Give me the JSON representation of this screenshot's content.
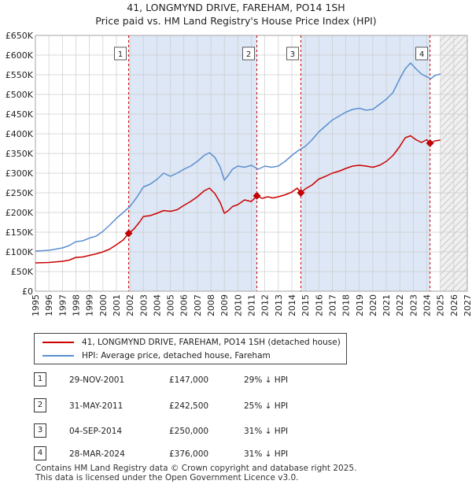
{
  "title_line1": "41, LONGMYND DRIVE, FAREHAM, PO14 1SH",
  "title_line2": "Price paid vs. HM Land Registry's House Price Index (HPI)",
  "colors": {
    "price": "#cc0000",
    "hpi": "#5b8fd0",
    "band": "#dde7f5",
    "grid": "#cccccc",
    "marker": "#cc0000"
  },
  "chart_data": {
    "type": "line",
    "title": "Price paid vs. HM Land Registry's House Price Index (HPI)",
    "xlim": [
      1995,
      2027
    ],
    "ylim": [
      0,
      650000
    ],
    "x_ticks": [
      "1995",
      "1996",
      "1997",
      "1998",
      "1999",
      "2000",
      "2001",
      "2002",
      "2003",
      "2004",
      "2005",
      "2006",
      "2007",
      "2008",
      "2009",
      "2010",
      "2011",
      "2012",
      "2013",
      "2014",
      "2015",
      "2016",
      "2017",
      "2018",
      "2019",
      "2020",
      "2021",
      "2022",
      "2023",
      "2024",
      "2025",
      "2026",
      "2027"
    ],
    "y_ticks": [
      {
        "value": 0,
        "label": "£0"
      },
      {
        "value": 50000,
        "label": "£50K"
      },
      {
        "value": 100000,
        "label": "£100K"
      },
      {
        "value": 150000,
        "label": "£150K"
      },
      {
        "value": 200000,
        "label": "£200K"
      },
      {
        "value": 250000,
        "label": "£250K"
      },
      {
        "value": 300000,
        "label": "£300K"
      },
      {
        "value": 350000,
        "label": "£350K"
      },
      {
        "value": 400000,
        "label": "£400K"
      },
      {
        "value": 450000,
        "label": "£450K"
      },
      {
        "value": 500000,
        "label": "£500K"
      },
      {
        "value": 550000,
        "label": "£550K"
      },
      {
        "value": 600000,
        "label": "£600K"
      },
      {
        "value": 650000,
        "label": "£650K"
      }
    ],
    "forecast_start": 2025.0,
    "shaded_bands": [
      [
        2001.91,
        2011.41
      ],
      [
        2014.67,
        2024.24
      ]
    ],
    "series": [
      {
        "name": "41, LONGMYND DRIVE, FAREHAM, PO14 1SH (detached house)",
        "key": "price",
        "x": [
          1995.0,
          1996.0,
          1997.0,
          1997.5,
          1998.0,
          1998.5,
          1999.0,
          1999.5,
          2000.0,
          2000.5,
          2001.0,
          2001.5,
          2001.91,
          2002.3,
          2002.7,
          2003.0,
          2003.5,
          2004.0,
          2004.5,
          2005.0,
          2005.5,
          2006.0,
          2006.5,
          2007.0,
          2007.5,
          2007.9,
          2008.3,
          2008.7,
          2009.0,
          2009.3,
          2009.6,
          2010.0,
          2010.5,
          2011.0,
          2011.41,
          2011.8,
          2012.2,
          2012.6,
          2013.0,
          2013.5,
          2014.0,
          2014.4,
          2014.67,
          2015.0,
          2015.5,
          2016.0,
          2016.5,
          2017.0,
          2017.5,
          2018.0,
          2018.5,
          2019.0,
          2019.5,
          2020.0,
          2020.5,
          2021.0,
          2021.5,
          2022.0,
          2022.4,
          2022.8,
          2023.2,
          2023.6,
          2024.0,
          2024.24,
          2024.6,
          2025.0
        ],
        "values": [
          72000,
          73000,
          76000,
          79000,
          86000,
          87000,
          91000,
          95000,
          100000,
          107000,
          118000,
          130000,
          147000,
          158000,
          175000,
          190000,
          192000,
          198000,
          205000,
          203000,
          207000,
          218000,
          228000,
          240000,
          255000,
          262000,
          248000,
          225000,
          198000,
          205000,
          215000,
          220000,
          232000,
          228000,
          242500,
          236000,
          240000,
          237000,
          240000,
          245000,
          252000,
          262000,
          250000,
          260000,
          270000,
          285000,
          292000,
          300000,
          305000,
          312000,
          318000,
          320000,
          318000,
          315000,
          320000,
          330000,
          345000,
          368000,
          390000,
          395000,
          385000,
          378000,
          385000,
          376000,
          382000,
          384000
        ]
      },
      {
        "name": "HPI: Average price, detached house, Fareham",
        "key": "hpi",
        "x": [
          1995.0,
          1996.0,
          1997.0,
          1997.5,
          1998.0,
          1998.5,
          1999.0,
          1999.5,
          2000.0,
          2000.5,
          2001.0,
          2001.5,
          2002.0,
          2002.5,
          2003.0,
          2003.5,
          2004.0,
          2004.5,
          2005.0,
          2005.5,
          2006.0,
          2006.5,
          2007.0,
          2007.5,
          2007.9,
          2008.3,
          2008.7,
          2009.0,
          2009.3,
          2009.6,
          2010.0,
          2010.5,
          2011.0,
          2011.5,
          2012.0,
          2012.5,
          2013.0,
          2013.5,
          2014.0,
          2014.5,
          2015.0,
          2015.5,
          2016.0,
          2016.5,
          2017.0,
          2017.5,
          2018.0,
          2018.5,
          2019.0,
          2019.5,
          2020.0,
          2020.5,
          2021.0,
          2021.5,
          2022.0,
          2022.4,
          2022.8,
          2023.2,
          2023.6,
          2024.0,
          2024.3,
          2024.6,
          2025.0
        ],
        "values": [
          102000,
          104000,
          110000,
          116000,
          126000,
          128000,
          135000,
          140000,
          152000,
          168000,
          185000,
          200000,
          215000,
          238000,
          265000,
          272000,
          284000,
          300000,
          292000,
          300000,
          310000,
          318000,
          330000,
          345000,
          352000,
          340000,
          315000,
          282000,
          295000,
          310000,
          318000,
          315000,
          320000,
          310000,
          318000,
          315000,
          318000,
          330000,
          345000,
          358000,
          368000,
          385000,
          405000,
          420000,
          435000,
          445000,
          455000,
          462000,
          465000,
          460000,
          462000,
          475000,
          488000,
          505000,
          540000,
          565000,
          580000,
          565000,
          552000,
          545000,
          540000,
          548000,
          552000
        ]
      }
    ],
    "sales": [
      {
        "num": "1",
        "x": 2001.91,
        "price": 147000,
        "date": "29-NOV-2001",
        "price_label": "£147,000",
        "hpi_label": "29% ↓ HPI"
      },
      {
        "num": "2",
        "x": 2011.41,
        "price": 242500,
        "date": "31-MAY-2011",
        "price_label": "£242,500",
        "hpi_label": "25% ↓ HPI"
      },
      {
        "num": "3",
        "x": 2014.67,
        "price": 250000,
        "date": "04-SEP-2014",
        "price_label": "£250,000",
        "hpi_label": "31% ↓ HPI"
      },
      {
        "num": "4",
        "x": 2024.24,
        "price": 376000,
        "date": "28-MAR-2024",
        "price_label": "£376,000",
        "hpi_label": "31% ↓ HPI"
      }
    ]
  },
  "legend": {
    "price_label": "41, LONGMYND DRIVE, FAREHAM, PO14 1SH (detached house)",
    "hpi_label": "HPI: Average price, detached house, Fareham"
  },
  "footer": {
    "line1": "Contains HM Land Registry data © Crown copyright and database right 2025.",
    "line2": "This data is licensed under the Open Government Licence v3.0."
  }
}
